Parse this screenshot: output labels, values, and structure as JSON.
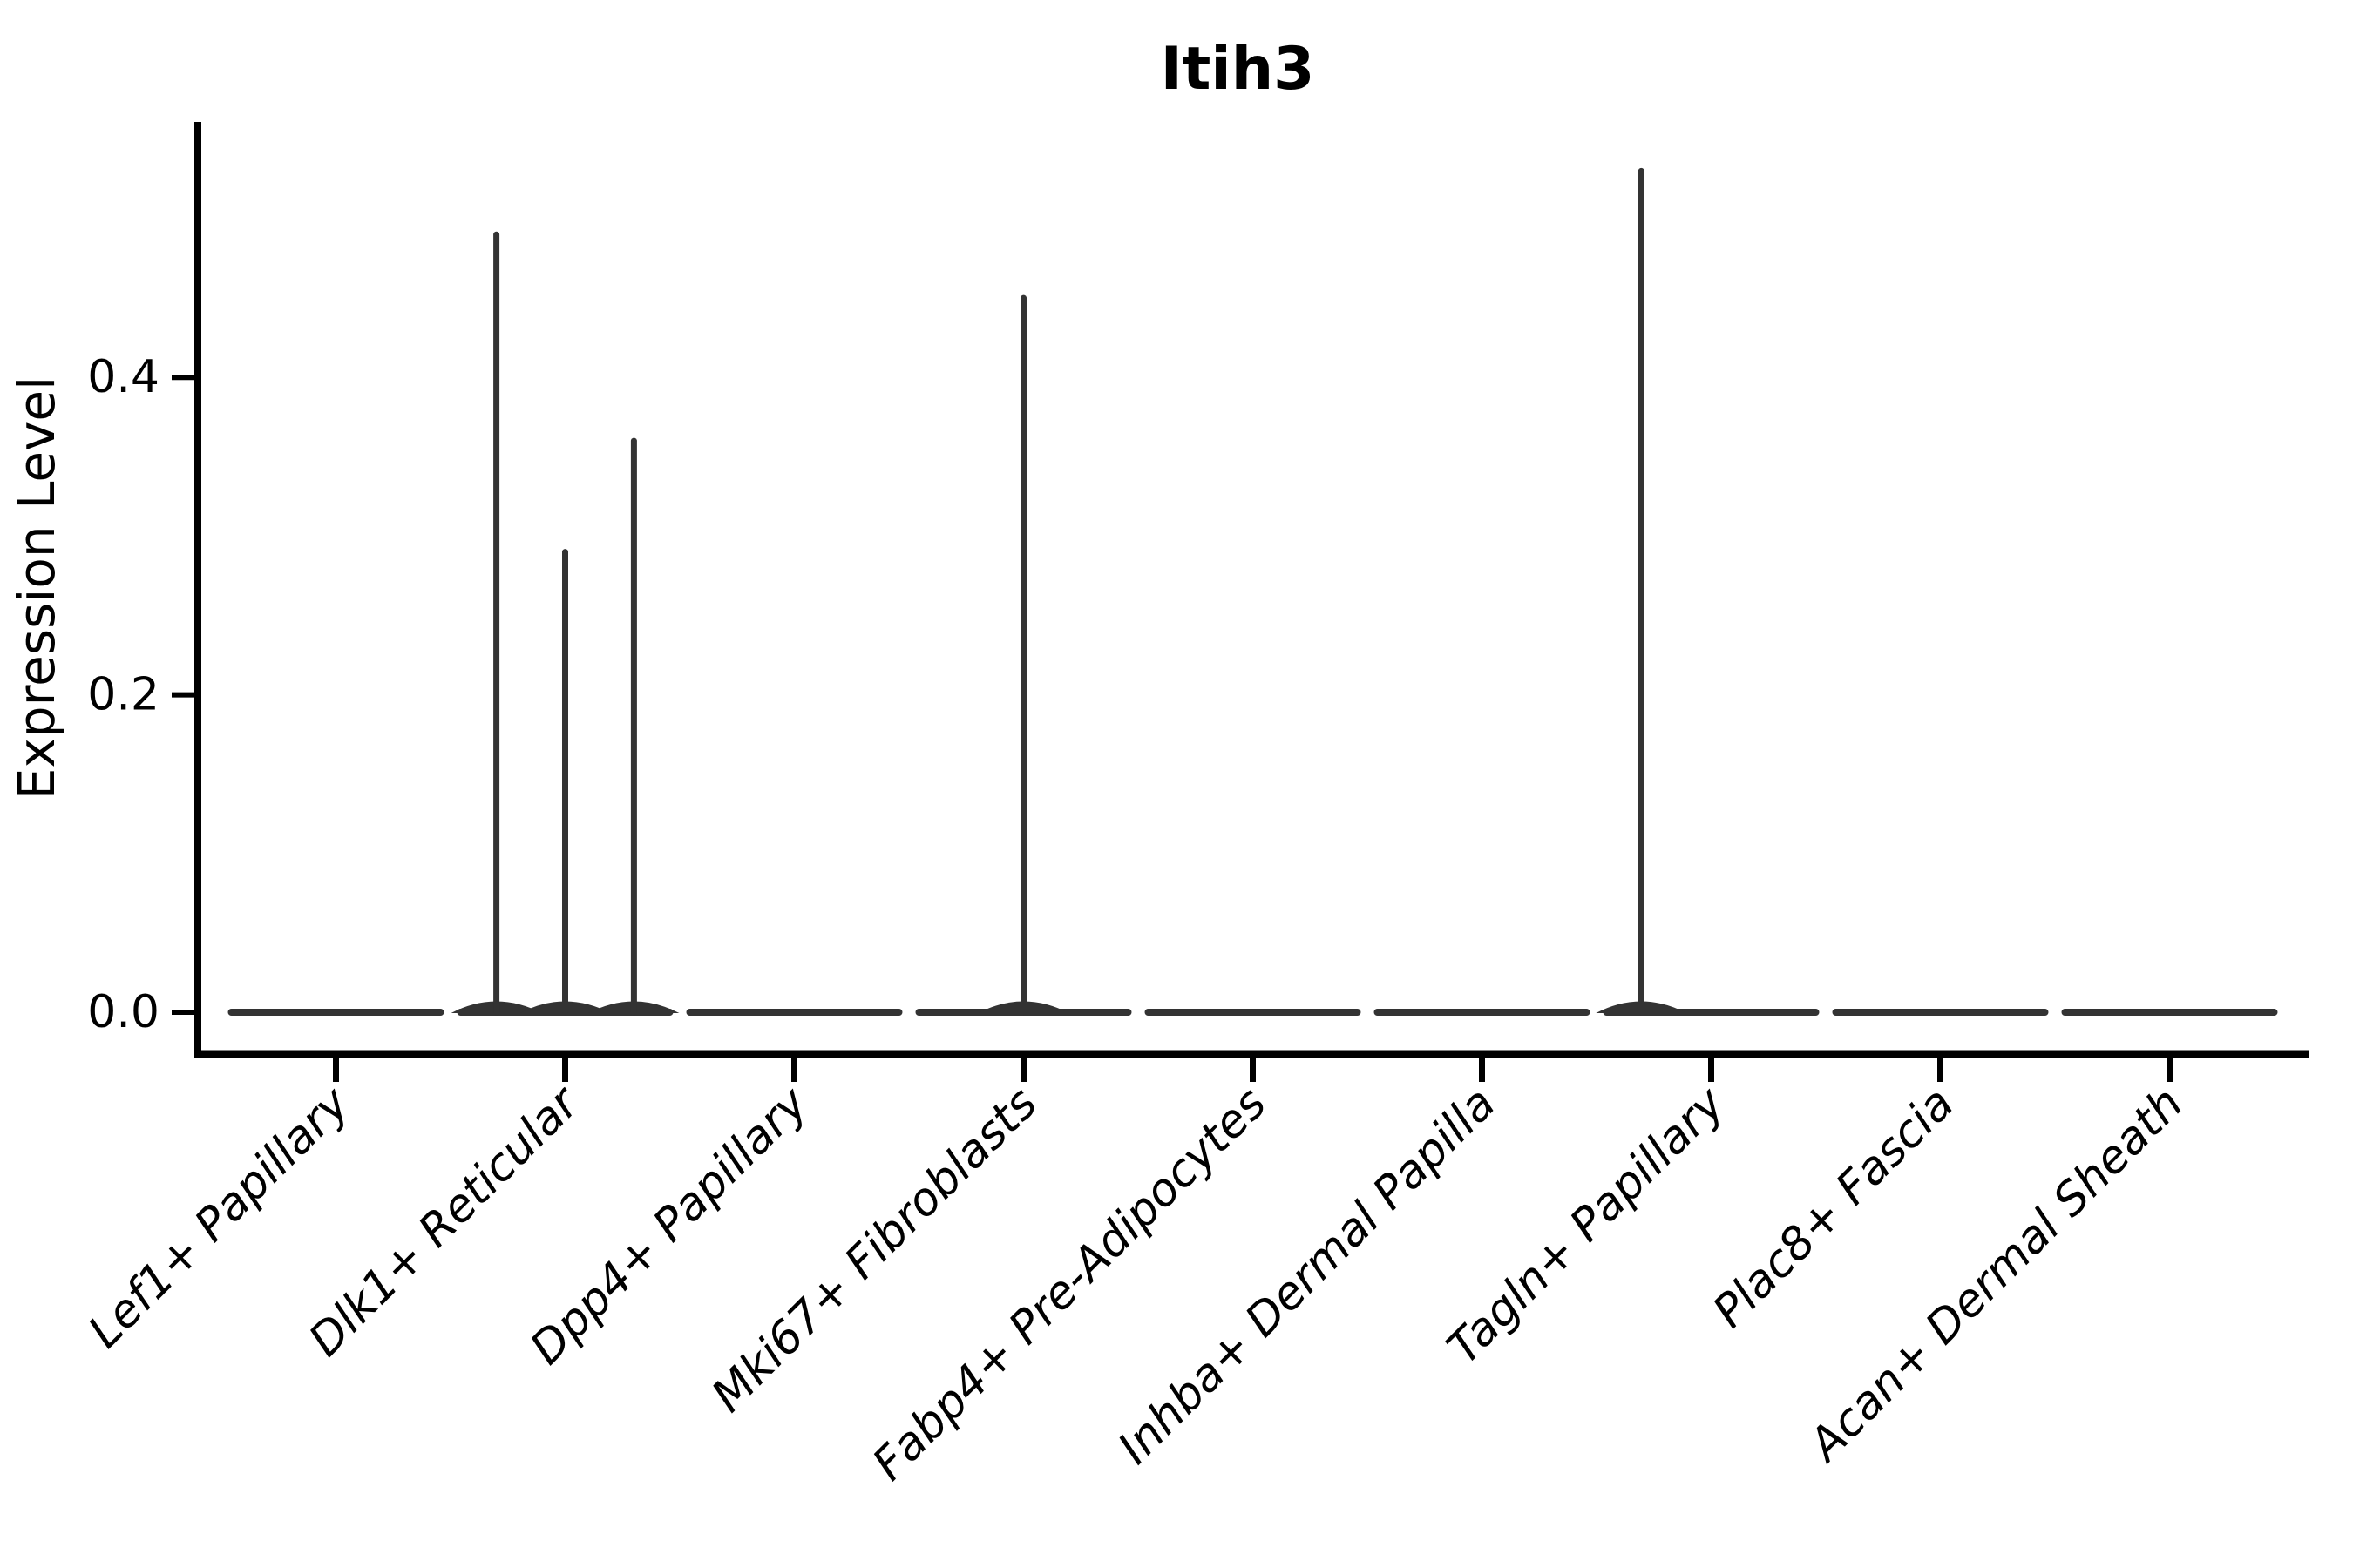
{
  "chart_data": {
    "type": "violin",
    "title": "Itih3",
    "xlabel": "",
    "ylabel": "Expression Level",
    "ytick_labels": [
      "0.0",
      "0.2",
      "0.4"
    ],
    "ytick_values": [
      0.0,
      0.2,
      0.4
    ],
    "ylim": [
      -0.026,
      0.561
    ],
    "grid": false,
    "legend_position": "none",
    "categories": [
      "Lef1+ Papillary",
      "Dlk1+ Reticular",
      "Dpp4+ Papillary",
      "Mki67+ Fibroblasts",
      "Fabp4+ Pre-Adipocytes",
      "Inhba+ Dermal Papilla",
      "Tagln+ Papillary",
      "Plac8+ Fascia",
      "Acan+ Dermal Sheath"
    ],
    "violins": [
      {
        "category": "Lef1+ Papillary",
        "baseline_value": 0.0,
        "spikes": []
      },
      {
        "category": "Dlk1+ Reticular",
        "baseline_value": 0.0,
        "spikes": [
          {
            "x_offset_frac": -0.3,
            "value": 0.49
          },
          {
            "x_offset_frac": 0.0,
            "value": 0.29
          },
          {
            "x_offset_frac": 0.3,
            "value": 0.36
          }
        ]
      },
      {
        "category": "Dpp4+ Papillary",
        "baseline_value": 0.0,
        "spikes": []
      },
      {
        "category": "Mki67+ Fibroblasts",
        "baseline_value": 0.0,
        "spikes": [
          {
            "x_offset_frac": 0.0,
            "value": 0.45
          }
        ]
      },
      {
        "category": "Fabp4+ Pre-Adipocytes",
        "baseline_value": 0.0,
        "spikes": []
      },
      {
        "category": "Inhba+ Dermal Papilla",
        "baseline_value": 0.0,
        "spikes": []
      },
      {
        "category": "Tagln+ Papillary",
        "baseline_value": 0.0,
        "spikes": [
          {
            "x_offset_frac": -0.305,
            "value": 0.53
          }
        ]
      },
      {
        "category": "Plac8+ Fascia",
        "baseline_value": 0.0,
        "spikes": []
      },
      {
        "category": "Acan+ Dermal Sheath",
        "baseline_value": 0.0,
        "spikes": []
      }
    ],
    "colors": {
      "violin_line": "#333333",
      "axis": "#000000",
      "text": "#000000",
      "background": "#ffffff"
    }
  }
}
